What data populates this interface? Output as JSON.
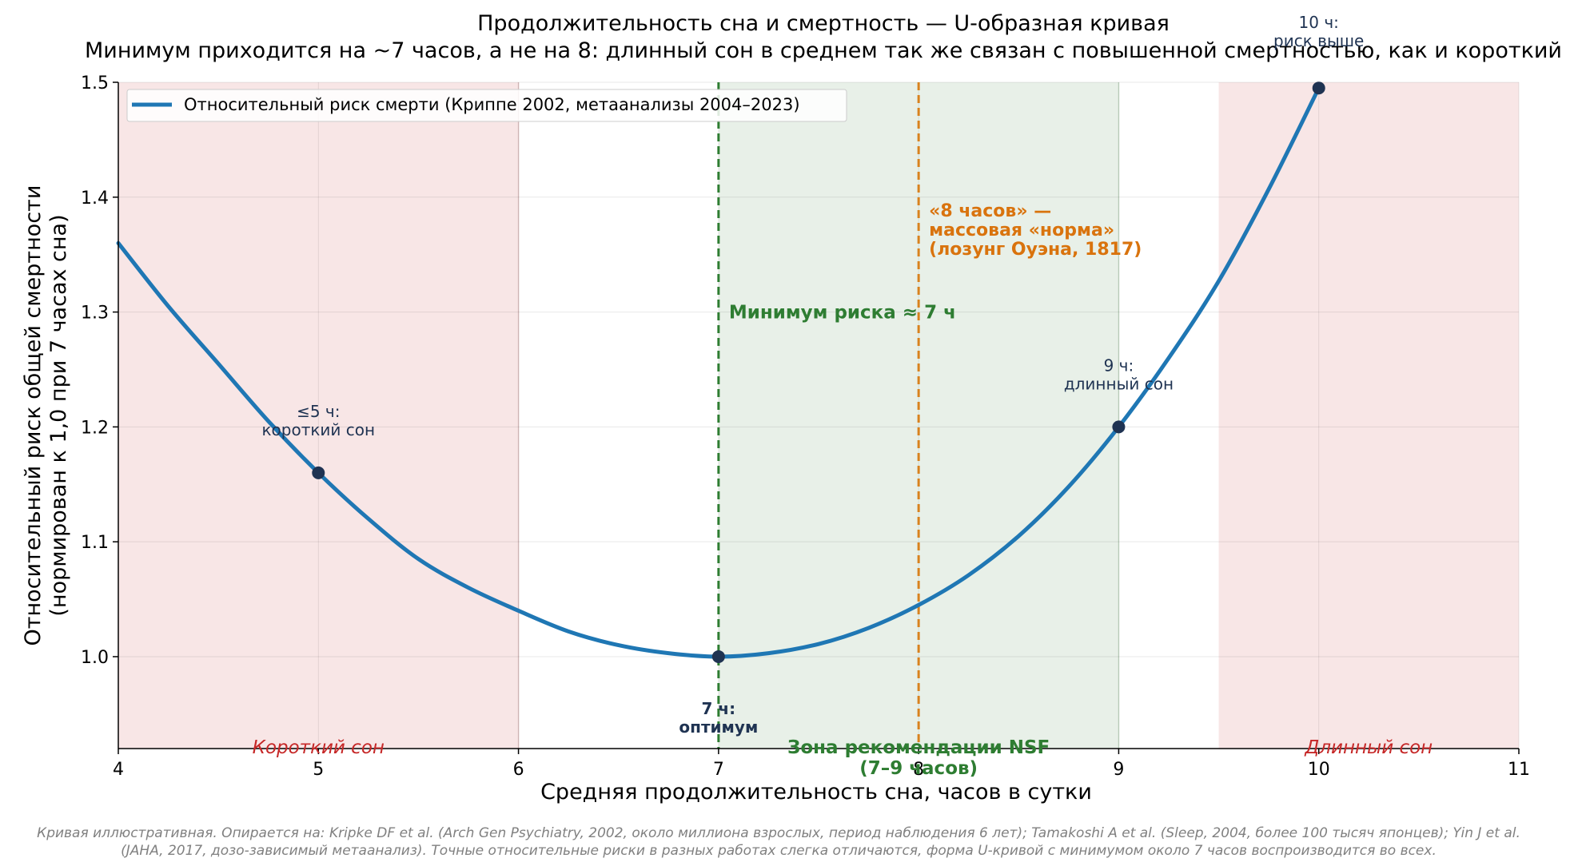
{
  "chart_data": {
    "type": "line",
    "title": "Продолжительность сна и смертность — U-образная кривая",
    "subtitle": "Минимум приходится на ~7 часов, а не на 8: длинный сон в среднем так же связан с повышенной смертностью, как и короткий",
    "xlabel": "Средняя продолжительность сна, часов в сутки",
    "ylabel_line1": "Относительный риск общей смертности",
    "ylabel_line2": "(нормирован к 1,0 при 7 часах сна)",
    "xlim": [
      4,
      11
    ],
    "ylim": [
      0.92,
      1.5
    ],
    "x_ticks": [
      "4",
      "5",
      "6",
      "7",
      "8",
      "9",
      "10",
      "11"
    ],
    "x_tick_values": [
      4,
      5,
      6,
      7,
      8,
      9,
      10,
      11
    ],
    "y_ticks": [
      "1.0",
      "1.1",
      "1.2",
      "1.3",
      "1.4",
      "1.5"
    ],
    "y_tick_values": [
      1.0,
      1.1,
      1.2,
      1.3,
      1.4,
      1.5
    ],
    "grid": true,
    "legend_position": "top-left",
    "series": [
      {
        "name": "Относительный риск смерти (Криппе 2002, метаанализы 2004–2023)",
        "color": "#1f77b4",
        "x": [
          4.0,
          4.25,
          4.5,
          4.75,
          5.0,
          5.25,
          5.5,
          5.75,
          6.0,
          6.25,
          6.5,
          6.75,
          7.0,
          7.25,
          7.5,
          7.75,
          8.0,
          8.25,
          8.5,
          8.75,
          9.0,
          9.25,
          9.5,
          9.75,
          10.0
        ],
        "y": [
          1.36,
          1.305,
          1.255,
          1.205,
          1.16,
          1.12,
          1.085,
          1.06,
          1.04,
          1.022,
          1.01,
          1.003,
          1.0,
          1.003,
          1.011,
          1.025,
          1.045,
          1.071,
          1.105,
          1.148,
          1.2,
          1.26,
          1.327,
          1.407,
          1.495
        ]
      }
    ],
    "highlight_points": [
      {
        "x": 5,
        "y": 1.16,
        "label_line1": "≤5 ч:",
        "label_line2": "короткий сон"
      },
      {
        "x": 7,
        "y": 1.0,
        "label_line1": "7 ч:",
        "label_line2": "оптимум"
      },
      {
        "x": 9,
        "y": 1.2,
        "label_line1": "9 ч:",
        "label_line2": "длинный сон"
      },
      {
        "x": 10,
        "y": 1.495,
        "label_line1": "10 ч:",
        "label_line2": "риск выше"
      }
    ],
    "shaded_zones": [
      {
        "from": 4,
        "to": 6,
        "kind": "short",
        "color": "#f8e6e6",
        "label": "Короткий сон"
      },
      {
        "from": 7,
        "to": 9,
        "kind": "recommended",
        "color": "#e8f0e8",
        "label_line1": "Зона рекомендации NSF",
        "label_line2": "(7–9 часов)"
      },
      {
        "from": 9.5,
        "to": 11,
        "kind": "long",
        "color": "#f8e6e6",
        "label": "Длинный сон"
      }
    ],
    "vlines": [
      {
        "x": 7,
        "color": "#2e7d32",
        "label": "Минимум риска ≈ 7 ч"
      },
      {
        "x": 8,
        "color": "#d9821e",
        "label_line1": "«8 часов» —",
        "label_line2": "массовая «норма»",
        "label_line3": "(лозунг Оуэна, 1817)"
      }
    ]
  },
  "footnote": {
    "line1": "Кривая иллюстративная. Опирается на: Kripke DF et al. (Arch Gen Psychiatry, 2002, около миллиона взрослых, период наблюдения 6 лет); Tamakoshi A et al. (Sleep, 2004, более 100 тысяч японцев); Yin J et al.",
    "line2": "(JAHA, 2017, дозо-зависимый метаанализ). Точные относительные риски в разных работах слегка отличаются, форма U-кривой с минимумом около 7 часов воспроизводится во всех."
  }
}
